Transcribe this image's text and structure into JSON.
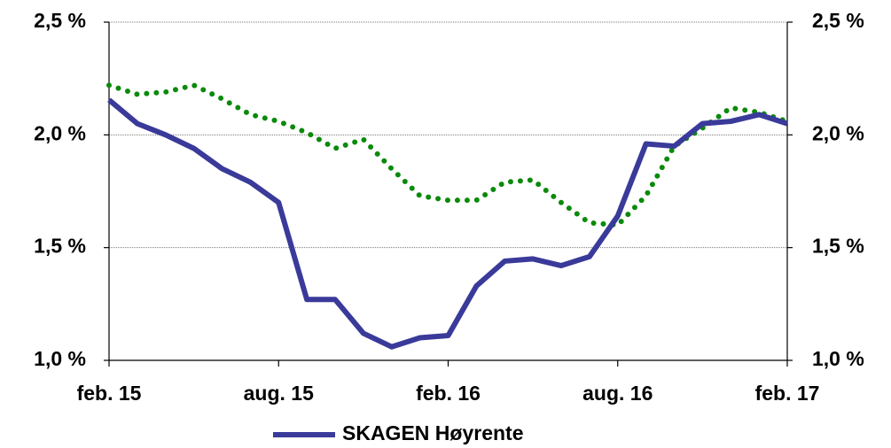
{
  "chart_data": {
    "type": "line",
    "categories": [
      "feb. 15",
      null,
      null,
      null,
      null,
      null,
      "aug. 15",
      null,
      null,
      null,
      null,
      null,
      "feb. 16",
      null,
      null,
      null,
      null,
      null,
      "aug. 16",
      null,
      null,
      null,
      null,
      null,
      "feb. 17"
    ],
    "series": [
      {
        "name": "SKAGEN Høyrente",
        "color": "#3a3a9a",
        "style": "solid",
        "values": [
          2.155,
          2.05,
          2.0,
          1.94,
          1.85,
          1.79,
          1.7,
          1.27,
          1.27,
          1.12,
          1.06,
          1.1,
          1.11,
          1.33,
          1.44,
          1.45,
          1.42,
          1.46,
          1.64,
          1.96,
          1.95,
          2.05,
          2.06,
          2.09,
          2.05
        ]
      },
      {
        "color": "#0a8a0a",
        "style": "dotted",
        "values": [
          2.22,
          2.18,
          2.19,
          2.22,
          2.16,
          2.09,
          2.06,
          2.01,
          1.94,
          1.98,
          1.85,
          1.73,
          1.71,
          1.71,
          1.79,
          1.8,
          1.7,
          1.61,
          1.6,
          1.73,
          1.95,
          2.03,
          2.12,
          2.1,
          2.06
        ]
      }
    ],
    "ylim": [
      1.0,
      2.5
    ],
    "yticks": [
      {
        "value": 1.0,
        "label": "1,0 %"
      },
      {
        "value": 1.5,
        "label": "1,5 %"
      },
      {
        "value": 2.0,
        "label": "2,0 %"
      },
      {
        "value": 2.5,
        "label": "2,5 %"
      }
    ],
    "y2lim": [
      1.0,
      2.5
    ],
    "y2ticks": [
      {
        "value": 1.0,
        "label": "1,0 %"
      },
      {
        "value": 1.5,
        "label": "1,5 %"
      },
      {
        "value": 2.0,
        "label": "2,0 %"
      },
      {
        "value": 2.5,
        "label": "2,5 %"
      }
    ],
    "grid": true,
    "legend": "bottom"
  }
}
